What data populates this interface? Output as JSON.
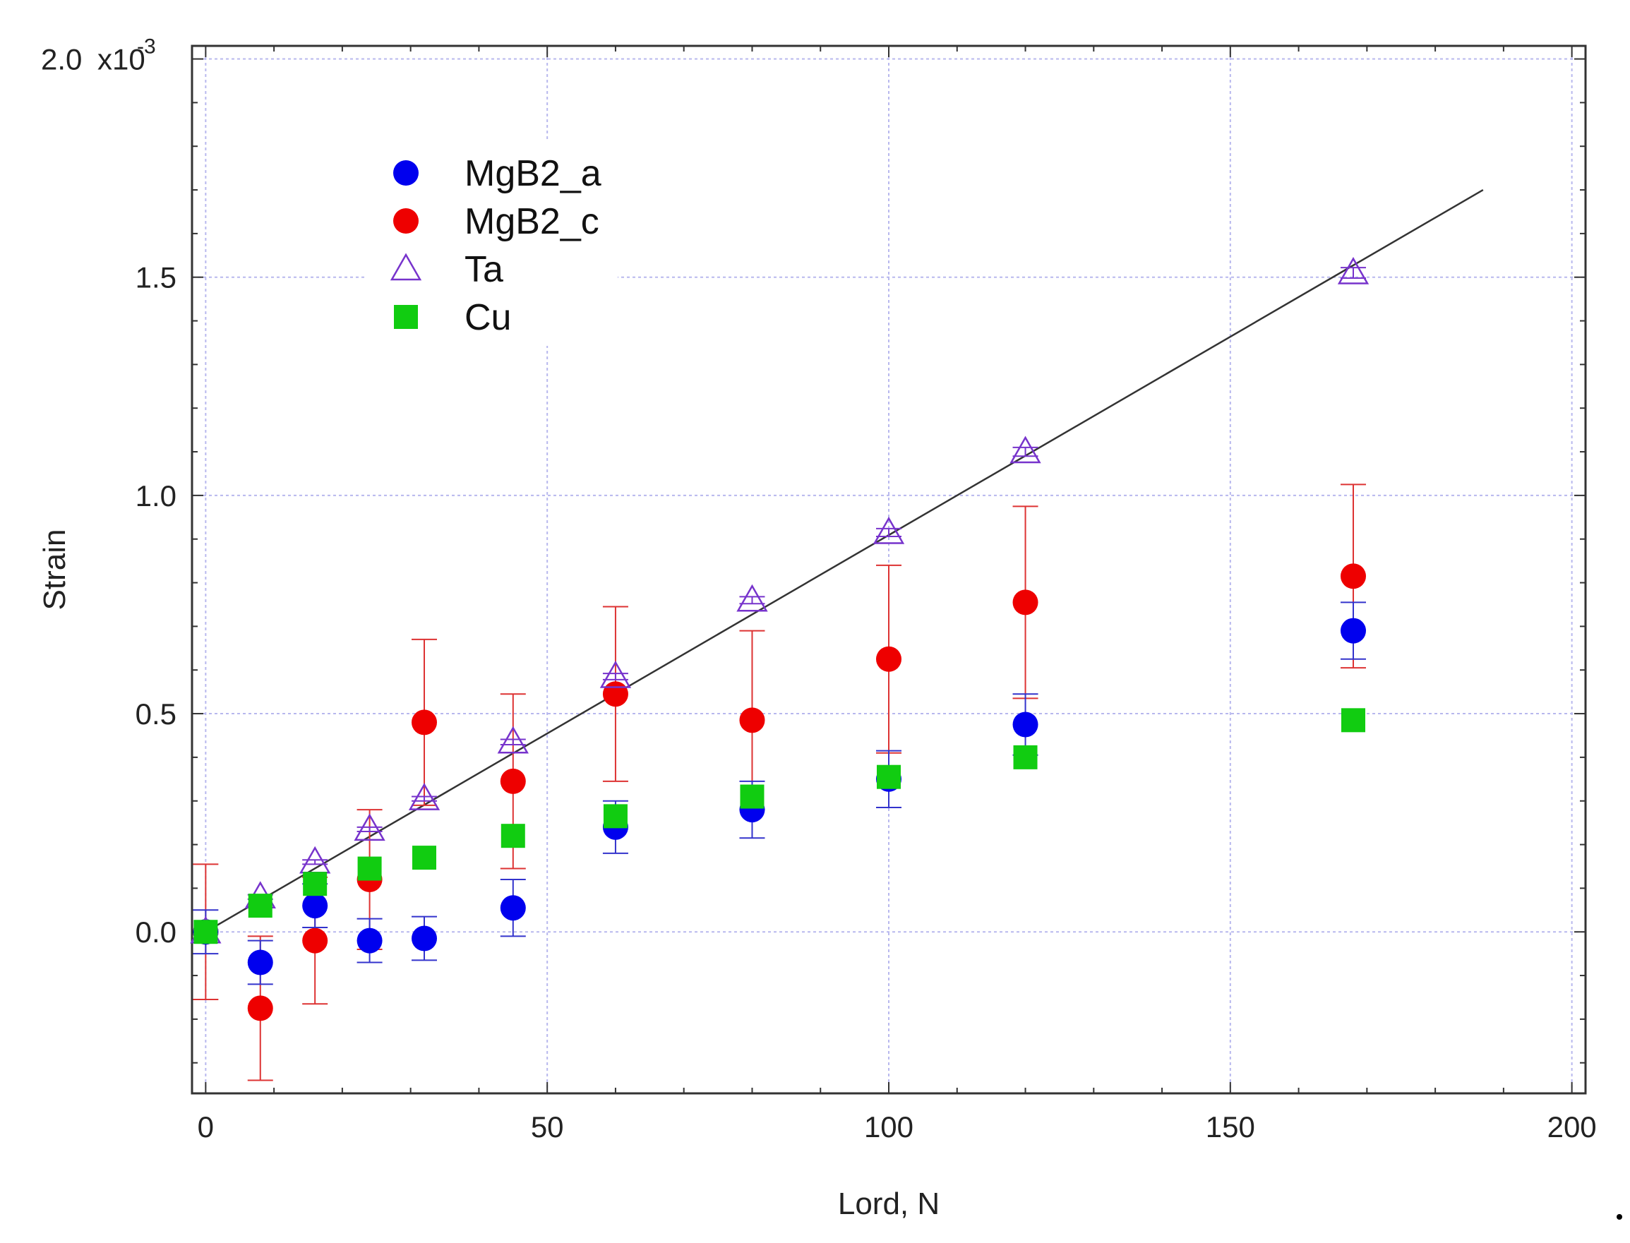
{
  "chart_data": {
    "type": "scatter",
    "title": "",
    "xlabel": "Lord, N",
    "ylabel": "Strain",
    "y_scale_label": "x10",
    "y_scale_exponent": "-3",
    "xlim": [
      -2,
      202
    ],
    "ylim": [
      -0.37,
      2.03
    ],
    "x_ticks": [
      0,
      50,
      100,
      150,
      200
    ],
    "x_tick_labels": [
      "0",
      "50",
      "100",
      "150",
      "200"
    ],
    "y_ticks": [
      0.0,
      0.5,
      1.0,
      1.5,
      2.0
    ],
    "y_tick_labels": [
      "0.0",
      "0.5",
      "1.0",
      "1.5",
      "2.0"
    ],
    "grid": true,
    "legend_position": "top-left",
    "series": [
      {
        "name": "MgB2_a",
        "marker": "circle",
        "color": "#0000ee",
        "error_color": "#3333cc",
        "x": [
          0,
          8,
          16,
          24,
          32,
          45,
          60,
          80,
          100,
          120,
          168
        ],
        "y": [
          0.0,
          -0.07,
          0.06,
          -0.02,
          -0.015,
          0.055,
          0.24,
          0.28,
          0.35,
          0.475,
          0.69
        ],
        "error": [
          0.05,
          0.05,
          0.05,
          0.05,
          0.05,
          0.065,
          0.06,
          0.065,
          0.065,
          0.07,
          0.065
        ]
      },
      {
        "name": "MgB2_c",
        "marker": "circle",
        "color": "#ee0000",
        "error_color": "#dd3333",
        "x": [
          0,
          8,
          16,
          24,
          32,
          45,
          60,
          80,
          100,
          120,
          168
        ],
        "y": [
          0.0,
          -0.175,
          -0.02,
          0.12,
          0.48,
          0.345,
          0.545,
          0.485,
          0.625,
          0.755,
          0.815
        ],
        "error": [
          0.155,
          0.165,
          0.145,
          0.16,
          0.19,
          0.2,
          0.2,
          0.205,
          0.215,
          0.22,
          0.21
        ]
      },
      {
        "name": "Ta",
        "marker": "triangle-open",
        "color": "#7733cc",
        "x": [
          0,
          8,
          16,
          24,
          32,
          45,
          60,
          80,
          100,
          120,
          168
        ],
        "y": [
          0.0,
          0.08,
          0.16,
          0.235,
          0.305,
          0.435,
          0.585,
          0.76,
          0.915,
          1.1,
          1.51
        ],
        "error": [
          0.005,
          0.005,
          0.005,
          0.005,
          0.005,
          0.006,
          0.007,
          0.008,
          0.009,
          0.01,
          0.012
        ]
      },
      {
        "name": "Cu",
        "marker": "square",
        "color": "#11cc11",
        "x": [
          0,
          8,
          16,
          24,
          32,
          45,
          60,
          80,
          100,
          120,
          168
        ],
        "y": [
          0.0,
          0.06,
          0.11,
          0.145,
          0.17,
          0.22,
          0.265,
          0.31,
          0.355,
          0.4,
          0.485
        ],
        "error": [
          0,
          0,
          0,
          0,
          0,
          0,
          0,
          0,
          0,
          0,
          0
        ]
      }
    ],
    "fit_line": {
      "color": "#333333",
      "x": [
        0,
        187
      ],
      "y": [
        0.0,
        1.7
      ]
    }
  }
}
